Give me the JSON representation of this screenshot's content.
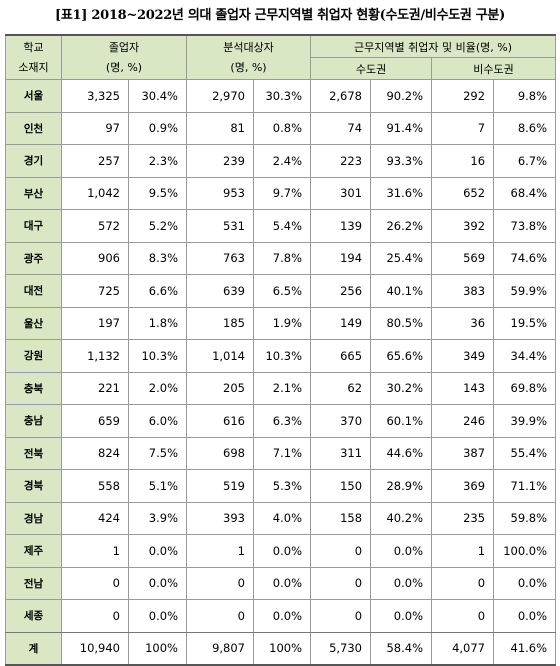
{
  "title": "[표1] 2018~2022년 의대 졸업자 근무지역별 취업자 현황(수도권/비수도권 구분)",
  "headers": {
    "school_loc_1": "학교",
    "school_loc_2": "소재지",
    "grad_1": "졸업자",
    "grad_2": "(명, %)",
    "analyzed_1": "분석대상자",
    "analyzed_2": "(명, %)",
    "employed": "근무지역별 취업자 및 비율(명, %)",
    "capital": "수도권",
    "noncapital": "비수도권"
  },
  "rows": [
    {
      "region": "서울",
      "grad_n": "3,325",
      "grad_p": "30.4%",
      "ana_n": "2,970",
      "ana_p": "30.3%",
      "cap_n": "2,678",
      "cap_p": "90.2%",
      "non_n": "292",
      "non_p": "9.8%"
    },
    {
      "region": "인천",
      "grad_n": "97",
      "grad_p": "0.9%",
      "ana_n": "81",
      "ana_p": "0.8%",
      "cap_n": "74",
      "cap_p": "91.4%",
      "non_n": "7",
      "non_p": "8.6%"
    },
    {
      "region": "경기",
      "grad_n": "257",
      "grad_p": "2.3%",
      "ana_n": "239",
      "ana_p": "2.4%",
      "cap_n": "223",
      "cap_p": "93.3%",
      "non_n": "16",
      "non_p": "6.7%"
    },
    {
      "region": "부산",
      "grad_n": "1,042",
      "grad_p": "9.5%",
      "ana_n": "953",
      "ana_p": "9.7%",
      "cap_n": "301",
      "cap_p": "31.6%",
      "non_n": "652",
      "non_p": "68.4%"
    },
    {
      "region": "대구",
      "grad_n": "572",
      "grad_p": "5.2%",
      "ana_n": "531",
      "ana_p": "5.4%",
      "cap_n": "139",
      "cap_p": "26.2%",
      "non_n": "392",
      "non_p": "73.8%"
    },
    {
      "region": "광주",
      "grad_n": "906",
      "grad_p": "8.3%",
      "ana_n": "763",
      "ana_p": "7.8%",
      "cap_n": "194",
      "cap_p": "25.4%",
      "non_n": "569",
      "non_p": "74.6%"
    },
    {
      "region": "대전",
      "grad_n": "725",
      "grad_p": "6.6%",
      "ana_n": "639",
      "ana_p": "6.5%",
      "cap_n": "256",
      "cap_p": "40.1%",
      "non_n": "383",
      "non_p": "59.9%"
    },
    {
      "region": "울산",
      "grad_n": "197",
      "grad_p": "1.8%",
      "ana_n": "185",
      "ana_p": "1.9%",
      "cap_n": "149",
      "cap_p": "80.5%",
      "non_n": "36",
      "non_p": "19.5%"
    },
    {
      "region": "강원",
      "grad_n": "1,132",
      "grad_p": "10.3%",
      "ana_n": "1,014",
      "ana_p": "10.3%",
      "cap_n": "665",
      "cap_p": "65.6%",
      "non_n": "349",
      "non_p": "34.4%"
    },
    {
      "region": "충북",
      "grad_n": "221",
      "grad_p": "2.0%",
      "ana_n": "205",
      "ana_p": "2.1%",
      "cap_n": "62",
      "cap_p": "30.2%",
      "non_n": "143",
      "non_p": "69.8%"
    },
    {
      "region": "충남",
      "grad_n": "659",
      "grad_p": "6.0%",
      "ana_n": "616",
      "ana_p": "6.3%",
      "cap_n": "370",
      "cap_p": "60.1%",
      "non_n": "246",
      "non_p": "39.9%"
    },
    {
      "region": "전북",
      "grad_n": "824",
      "grad_p": "7.5%",
      "ana_n": "698",
      "ana_p": "7.1%",
      "cap_n": "311",
      "cap_p": "44.6%",
      "non_n": "387",
      "non_p": "55.4%"
    },
    {
      "region": "경북",
      "grad_n": "558",
      "grad_p": "5.1%",
      "ana_n": "519",
      "ana_p": "5.3%",
      "cap_n": "150",
      "cap_p": "28.9%",
      "non_n": "369",
      "non_p": "71.1%"
    },
    {
      "region": "경남",
      "grad_n": "424",
      "grad_p": "3.9%",
      "ana_n": "393",
      "ana_p": "4.0%",
      "cap_n": "158",
      "cap_p": "40.2%",
      "non_n": "235",
      "non_p": "59.8%"
    },
    {
      "region": "제주",
      "grad_n": "1",
      "grad_p": "0.0%",
      "ana_n": "1",
      "ana_p": "0.0%",
      "cap_n": "0",
      "cap_p": "0.0%",
      "non_n": "1",
      "non_p": "100.0%"
    },
    {
      "region": "전남",
      "grad_n": "0",
      "grad_p": "0.0%",
      "ana_n": "0",
      "ana_p": "0.0%",
      "cap_n": "0",
      "cap_p": "0.0%",
      "non_n": "0",
      "non_p": "0.0%"
    },
    {
      "region": "세종",
      "grad_n": "0",
      "grad_p": "0.0%",
      "ana_n": "0",
      "ana_p": "0.0%",
      "cap_n": "0",
      "cap_p": "0.0%",
      "non_n": "0",
      "non_p": "0.0%"
    }
  ],
  "total": {
    "region": "계",
    "grad_n": "10,940",
    "grad_p": "100%",
    "ana_n": "9,807",
    "ana_p": "100%",
    "cap_n": "5,730",
    "cap_p": "58.4%",
    "non_n": "4,077",
    "non_p": "41.6%"
  },
  "colors": {
    "header_bg": "#d9e7c5",
    "border": "#9a9a9a"
  }
}
